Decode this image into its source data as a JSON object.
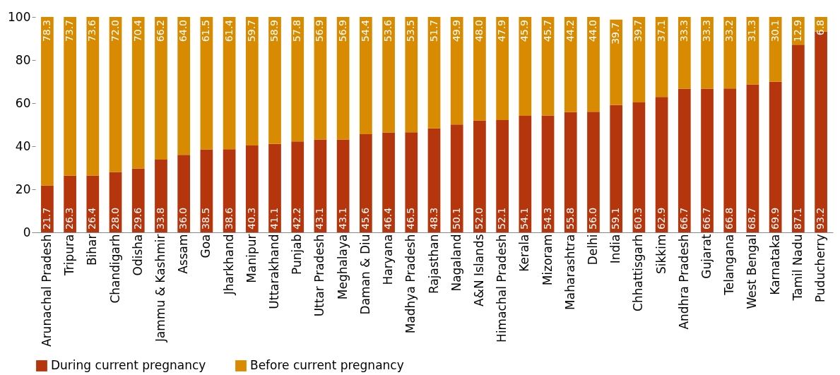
{
  "chart_data": {
    "type": "bar",
    "stacked": true,
    "legend": "bottom",
    "grid": false,
    "categories": [
      "Arunachal Pradesh",
      "Tripura",
      "Bihar",
      "Chandigarh",
      "Odisha",
      "Jammu & Kashmir",
      "Assam",
      "Goa",
      "Jharkhand",
      "Manipur",
      "Uttarakhand",
      "Punjab",
      "Uttar Pradesh",
      "Meghalaya",
      "Daman & Diu",
      "Haryana",
      "Madhya Pradesh",
      "Rajasthan",
      "Nagaland",
      "A&N Islands",
      "Himachal  Pradesh",
      "Kerala",
      "Mizoram",
      "Maharashtra",
      "Delhi",
      "India",
      "Chhattisgarh",
      "Sikkim",
      "Andhra Pradesh",
      "Gujarat",
      "Telangana",
      "West Bengal",
      "Karnataka",
      "Tamil Nadu",
      "Puducherry"
    ],
    "series": [
      {
        "name": "During current pregnancy",
        "color": "#b5360c",
        "values": [
          21.7,
          26.3,
          26.4,
          28.0,
          29.6,
          33.8,
          36.0,
          38.5,
          38.6,
          40.3,
          41.1,
          42.2,
          43.1,
          43.1,
          45.6,
          46.4,
          46.5,
          48.3,
          50.1,
          52.0,
          52.1,
          54.1,
          54.3,
          55.8,
          56.0,
          59.1,
          60.3,
          62.9,
          66.7,
          66.7,
          66.8,
          68.7,
          69.9,
          87.1,
          93.2
        ],
        "value_labels": [
          "21.7",
          "26.3",
          "26.4",
          "28.0",
          "29.6",
          "33.8",
          "36.0",
          "38.5",
          "38.6",
          "40.3",
          "41.1",
          "42.2",
          "43.1",
          "43.1",
          "45.6",
          "46.4",
          "46.5",
          "48.3",
          "50.1",
          "52.0",
          "52.1",
          "54.1",
          "54.3",
          "55.8",
          "56.0",
          "59.1",
          "60.3",
          "62.9",
          "66.7",
          "66.7",
          "66.8",
          "68.7",
          "69.9",
          "87.1",
          "93.2"
        ]
      },
      {
        "name": "Before current pregnancy",
        "color": "#d98b00",
        "values": [
          78.3,
          73.7,
          73.6,
          72.0,
          70.4,
          66.2,
          64.0,
          61.5,
          61.4,
          59.7,
          58.9,
          57.8,
          56.9,
          56.9,
          54.4,
          53.6,
          53.5,
          51.7,
          49.9,
          48.0,
          47.9,
          45.9,
          45.7,
          44.2,
          44.0,
          39.7,
          39.7,
          37.1,
          33.3,
          33.3,
          33.2,
          31.3,
          30.1,
          12.9,
          6.8
        ],
        "value_labels": [
          "78.3",
          "73.7",
          "73.6",
          "72.0",
          "70.4",
          "66.2",
          "64.0",
          "61.5",
          "61.4",
          "59.7",
          "58.9",
          "57.8",
          "56.9",
          "56.9",
          "54.4",
          "53.6",
          "53.5",
          "51.7",
          "49.9",
          "48.0",
          "47.9",
          "45.9",
          "45.7",
          "44.2",
          "44.0",
          "39.7",
          "39.7",
          "37.1",
          "33.3",
          "33.3",
          "33.2",
          "31.3",
          "30.1",
          "12.9",
          "6.8"
        ]
      }
    ],
    "ylim": [
      0,
      100
    ],
    "yticks": [
      0,
      20,
      40,
      60,
      80,
      100
    ]
  }
}
